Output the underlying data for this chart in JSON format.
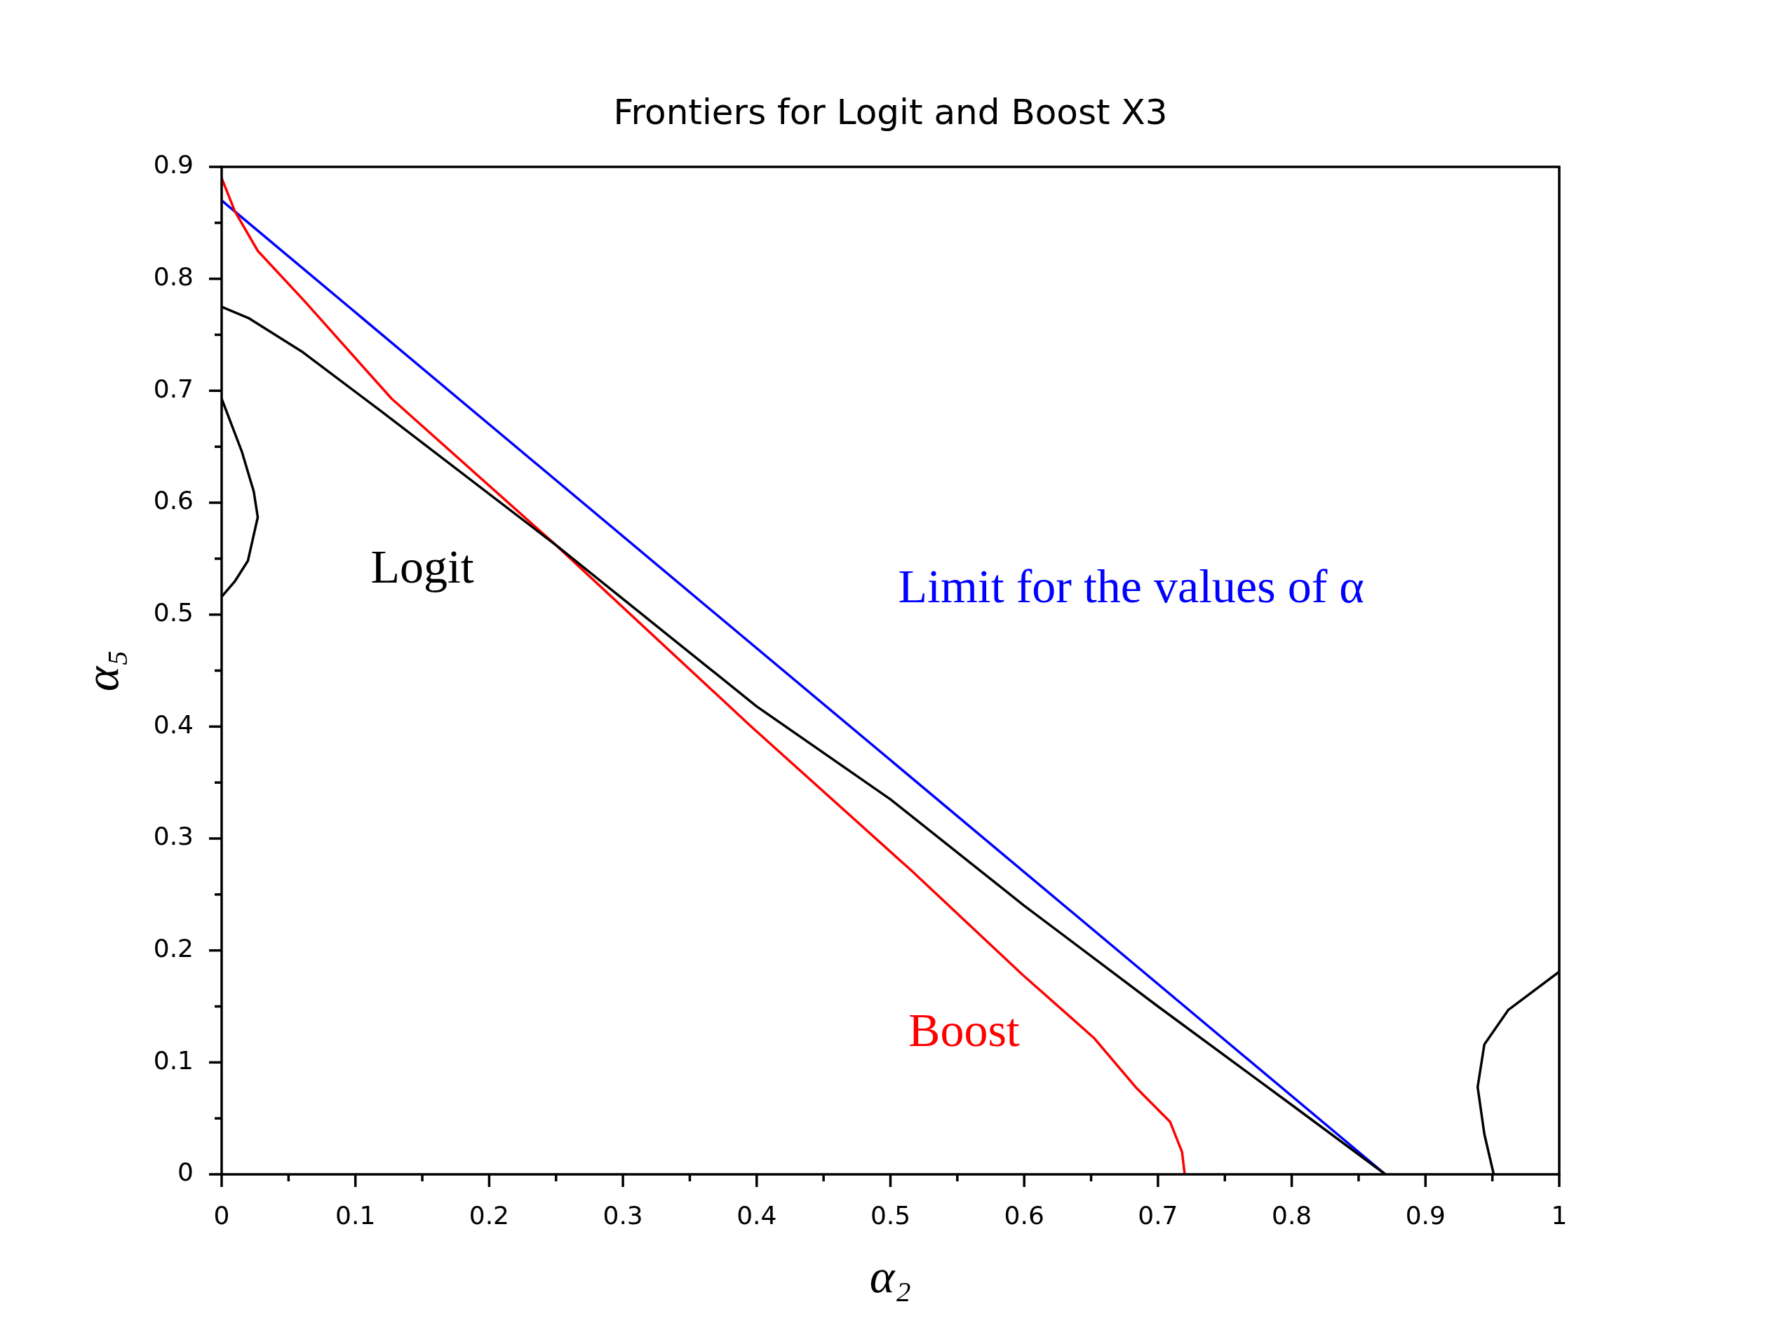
{
  "chart_data": {
    "type": "line",
    "title": "Frontiers for Logit and Boost X3",
    "xlabel": "α₂",
    "ylabel": "α₅",
    "xlim": [
      0,
      1
    ],
    "ylim": [
      0,
      0.9
    ],
    "xticks": [
      0,
      {
        "value": 0.05,
        "label": null
      },
      0.1,
      {
        "value": 0.15,
        "label": null
      },
      0.2,
      {
        "value": 0.25,
        "label": null
      },
      0.3,
      {
        "value": 0.35,
        "label": null
      },
      0.4,
      {
        "value": 0.45,
        "label": null
      },
      0.5,
      {
        "value": 0.55,
        "label": null
      },
      0.6,
      {
        "value": 0.65,
        "label": null
      },
      0.7,
      {
        "value": 0.75,
        "label": null
      },
      0.8,
      {
        "value": 0.85,
        "label": null
      },
      0.9,
      {
        "value": 0.95,
        "label": null
      },
      1
    ],
    "yticks": [
      0,
      {
        "value": 0.05,
        "label": null
      },
      0.1,
      {
        "value": 0.15,
        "label": null
      },
      0.2,
      {
        "value": 0.25,
        "label": null
      },
      0.3,
      {
        "value": 0.35,
        "label": null
      },
      0.4,
      {
        "value": 0.45,
        "label": null
      },
      0.5,
      {
        "value": 0.55,
        "label": null
      },
      0.6,
      {
        "value": 0.65,
        "label": null
      },
      0.7,
      {
        "value": 0.75,
        "label": null
      },
      0.8,
      {
        "value": 0.85,
        "label": null
      },
      0.9
    ],
    "grid": false,
    "legend": false,
    "marker": "none",
    "line_style": "solid",
    "series": [
      {
        "name": "Logit",
        "color": "#000000",
        "x": [
          0,
          0.02,
          0.06,
          0.12,
          0.25,
          0.4,
          0.5,
          0.6,
          0.7,
          0.8,
          0.87
        ],
        "values": [
          0.775,
          0.765,
          0.735,
          0.681,
          0.562,
          0.418,
          0.335,
          0.24,
          0.15,
          0.062,
          0
        ]
      },
      {
        "color": "#000000",
        "x": [
          0,
          0.015,
          0.024,
          0.027,
          0.0196,
          0.01,
          0
        ],
        "values": [
          0.693,
          0.646,
          0.61,
          0.587,
          0.548,
          0.53,
          0.516
        ]
      },
      {
        "color": "#000000",
        "x": [
          1,
          0.962,
          0.944,
          0.939,
          0.944,
          0.951
        ],
        "values": [
          0.181,
          0.147,
          0.116,
          0.078,
          0.036,
          0
        ]
      },
      {
        "name": "Boost",
        "color": "#ff0000",
        "x": [
          0,
          0.01,
          0.027,
          0.062,
          0.127,
          0.25,
          0.395,
          0.516,
          0.599,
          0.652,
          0.684,
          0.709,
          0.718,
          0.72
        ],
        "values": [
          0.89,
          0.86,
          0.825,
          0.78,
          0.693,
          0.562,
          0.401,
          0.271,
          0.178,
          0.122,
          0.077,
          0.047,
          0.02,
          0
        ]
      },
      {
        "name": "Limit for the values of α",
        "color": "#0000ff",
        "x": [
          0,
          0.87
        ],
        "values": [
          0.87,
          0
        ]
      }
    ]
  }
}
